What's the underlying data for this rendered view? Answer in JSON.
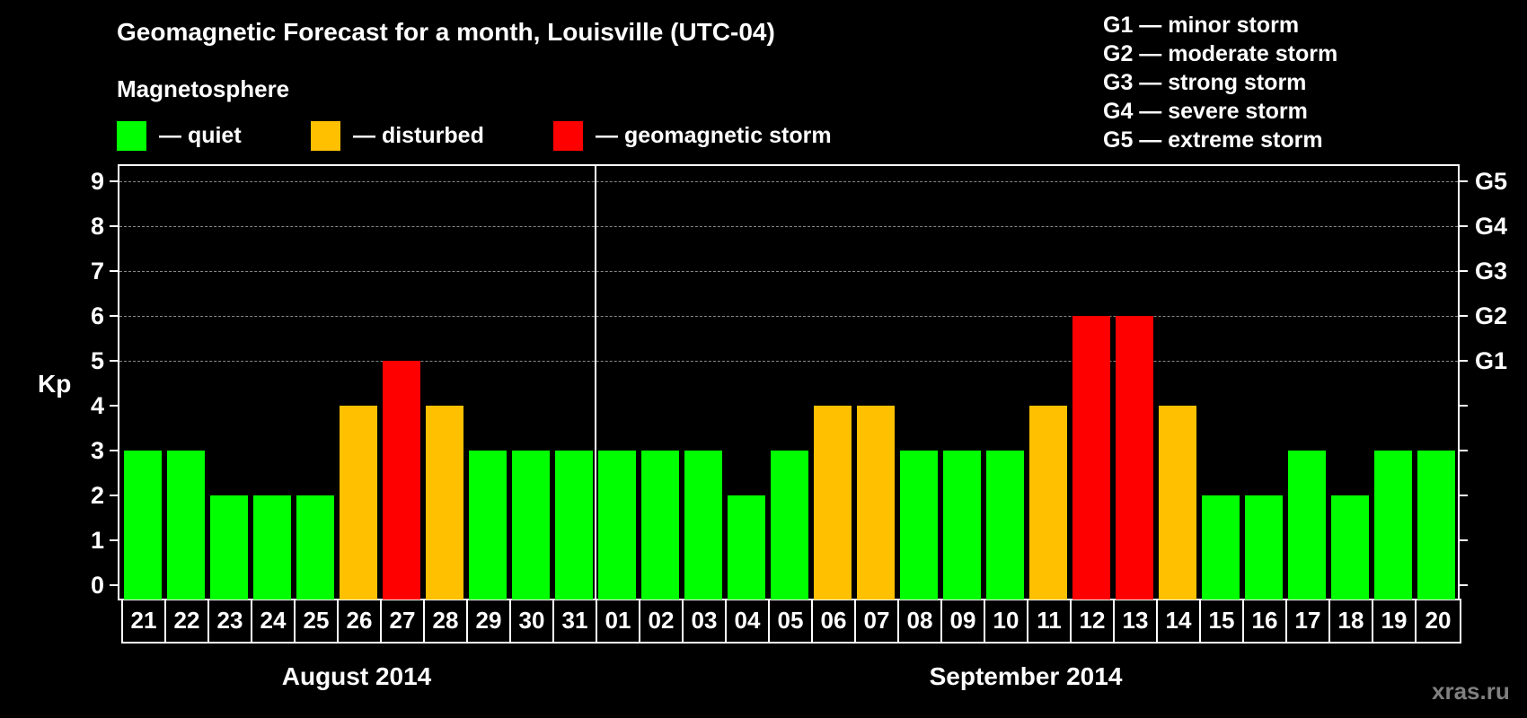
{
  "header": {
    "title": "Geomagnetic Forecast for a month, Louisville (UTC-04)",
    "subtitle": "Magnetosphere"
  },
  "legend": {
    "items": [
      {
        "label": "— quiet",
        "color": "#00ff00"
      },
      {
        "label": "— disturbed",
        "color": "#ffc000"
      },
      {
        "label": "— geomagnetic storm",
        "color": "#ff0000"
      }
    ]
  },
  "g_legend": [
    "G1 — minor storm",
    "G2 — moderate storm",
    "G3 — strong storm",
    "G4 — severe storm",
    "G5 — extreme storm"
  ],
  "axis": {
    "y_label": "Kp",
    "y_ticks": [
      "0",
      "1",
      "2",
      "3",
      "4",
      "5",
      "6",
      "7",
      "8",
      "9"
    ],
    "g_ticks": [
      {
        "value": 5,
        "label": "G1"
      },
      {
        "value": 6,
        "label": "G2"
      },
      {
        "value": 7,
        "label": "G3"
      },
      {
        "value": 8,
        "label": "G4"
      },
      {
        "value": 9,
        "label": "G5"
      }
    ],
    "months": [
      {
        "label": "August 2014"
      },
      {
        "label": "September 2014"
      }
    ]
  },
  "watermark": "xras.ru",
  "colors": {
    "quiet": "#00ff00",
    "disturbed": "#ffc000",
    "storm": "#ff0000",
    "background": "#000000",
    "grid": "#888888"
  },
  "chart_data": {
    "type": "bar",
    "title": "Geomagnetic Forecast for a month, Louisville (UTC-04)",
    "xlabel": "August 2014 / September 2014",
    "ylabel": "Kp",
    "ylim": [
      0,
      9
    ],
    "grid": "dashed horizontal at Kp 5–9",
    "categories": [
      "21",
      "22",
      "23",
      "24",
      "25",
      "26",
      "27",
      "28",
      "29",
      "30",
      "31",
      "01",
      "02",
      "03",
      "04",
      "05",
      "06",
      "07",
      "08",
      "09",
      "10",
      "11",
      "12",
      "13",
      "14",
      "15",
      "16",
      "17",
      "18",
      "19",
      "20"
    ],
    "values": [
      3,
      3,
      2,
      2,
      2,
      4,
      5,
      4,
      3,
      3,
      3,
      3,
      3,
      3,
      2,
      3,
      4,
      4,
      3,
      3,
      3,
      4,
      6,
      6,
      4,
      2,
      2,
      3,
      2,
      3,
      3
    ],
    "status": [
      "quiet",
      "quiet",
      "quiet",
      "quiet",
      "quiet",
      "disturbed",
      "storm",
      "disturbed",
      "quiet",
      "quiet",
      "quiet",
      "quiet",
      "quiet",
      "quiet",
      "quiet",
      "quiet",
      "disturbed",
      "disturbed",
      "quiet",
      "quiet",
      "quiet",
      "disturbed",
      "storm",
      "storm",
      "disturbed",
      "quiet",
      "quiet",
      "quiet",
      "quiet",
      "quiet",
      "quiet"
    ],
    "legend": [
      "quiet",
      "disturbed",
      "geomagnetic storm"
    ],
    "right_axis": {
      "5": "G1",
      "6": "G2",
      "7": "G3",
      "8": "G4",
      "9": "G5"
    }
  }
}
